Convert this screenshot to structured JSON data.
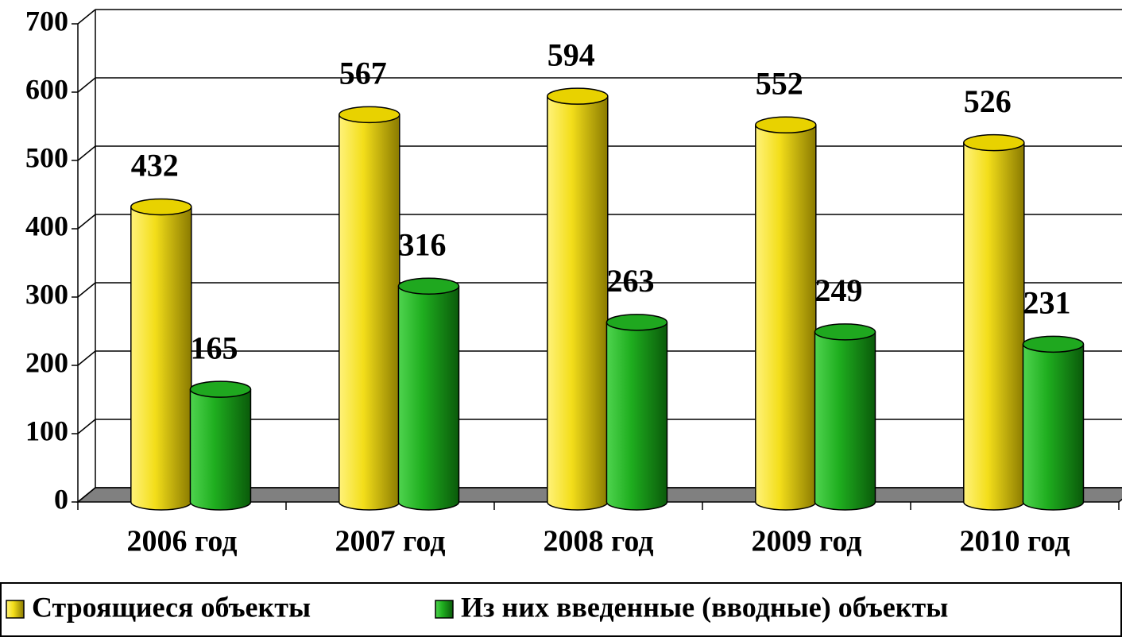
{
  "chart_data": {
    "type": "bar3d",
    "categories": [
      "2006 год",
      "2007 год",
      "2008 год",
      "2009 год",
      "2010 год"
    ],
    "series": [
      {
        "name": "Строящиеся объекты",
        "color": "#e8d200",
        "values": [
          432,
          567,
          594,
          552,
          526
        ]
      },
      {
        "name": "Из них введенные (вводные) объекты",
        "color": "#1fa81f",
        "values": [
          165,
          316,
          263,
          249,
          231
        ]
      }
    ],
    "ylim": [
      0,
      700
    ],
    "yticks": [
      0,
      100,
      200,
      300,
      400,
      500,
      600,
      700
    ],
    "grid": true,
    "legend": "bottom"
  }
}
